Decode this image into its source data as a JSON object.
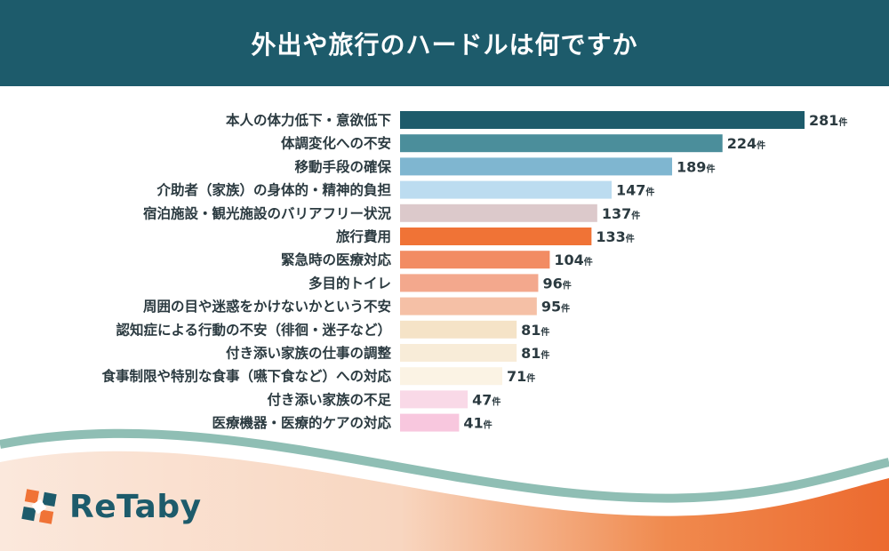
{
  "title": "外出や旅行のハードルは何ですか",
  "brand": {
    "name": "ReTaby"
  },
  "colors": {
    "header_bg": "#1d5b6b",
    "bars": [
      "#1d5b6b",
      "#4b8e9b",
      "#7fb6d0",
      "#bcdcf0",
      "#dcc9cb",
      "#f07336",
      "#f28c63",
      "#f3a88d",
      "#f5c0a6",
      "#f5e3c7",
      "#f8ecd8",
      "#fbf3e4",
      "#f9d9e7",
      "#f8c7de"
    ]
  },
  "chart_data": {
    "type": "bar",
    "orientation": "horizontal",
    "unit": "件",
    "title": "外出や旅行のハードルは何ですか",
    "categories": [
      "本人の体力低下・意欲低下",
      "体調変化への不安",
      "移動手段の確保",
      "介助者（家族）の身体的・精神的負担",
      "宿泊施設・観光施設のバリアフリー状況",
      "旅行費用",
      "緊急時の医療対応",
      "多目的トイレ",
      "周囲の目や迷惑をかけないかという不安",
      "認知症による行動の不安（徘徊・迷子など）",
      "付き添い家族の仕事の調整",
      "食事制限や特別な食事（嚥下食など）への対応",
      "付き添い家族の不足",
      "医療機器・医療的ケアの対応"
    ],
    "values": [
      281,
      224,
      189,
      147,
      137,
      133,
      104,
      96,
      95,
      81,
      81,
      71,
      47,
      41
    ],
    "grid": false
  }
}
